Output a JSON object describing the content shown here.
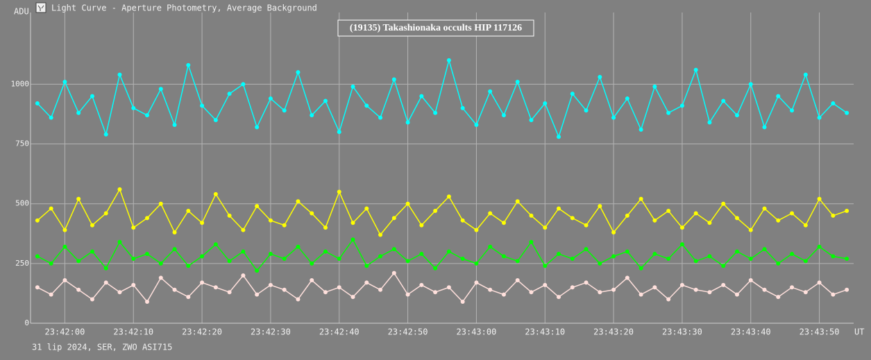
{
  "chart_data": {
    "type": "line",
    "window_title": "Light Curve - Aperture Photometry, Average Background",
    "title": "(19135) Takashionaka occults HIP 117126",
    "y_label": "ADU",
    "x_label": "UT",
    "footer": "31 lip 2024, SER, ZWO ASI715",
    "grid": true,
    "xlim": [
      "23:41:55",
      "23:43:55"
    ],
    "xticks": [
      "23:42:00",
      "23:42:10",
      "23:42:20",
      "23:42:30",
      "23:42:40",
      "23:42:50",
      "23:43:00",
      "23:43:10",
      "23:43:20",
      "23:43:30",
      "23:43:40",
      "23:43:50"
    ],
    "ylim": [
      0,
      1300
    ],
    "yticks": [
      0,
      250,
      500,
      750,
      1000
    ],
    "x": [
      "23:41:56",
      "23:41:58",
      "23:42:00",
      "23:42:02",
      "23:42:04",
      "23:42:06",
      "23:42:08",
      "23:42:10",
      "23:42:12",
      "23:42:14",
      "23:42:16",
      "23:42:18",
      "23:42:20",
      "23:42:22",
      "23:42:24",
      "23:42:26",
      "23:42:28",
      "23:42:30",
      "23:42:32",
      "23:42:34",
      "23:42:36",
      "23:42:38",
      "23:42:40",
      "23:42:42",
      "23:42:44",
      "23:42:46",
      "23:42:48",
      "23:42:50",
      "23:42:52",
      "23:42:54",
      "23:42:56",
      "23:42:58",
      "23:43:00",
      "23:43:02",
      "23:43:04",
      "23:43:06",
      "23:43:08",
      "23:43:10",
      "23:43:12",
      "23:43:14",
      "23:43:16",
      "23:43:18",
      "23:43:20",
      "23:43:22",
      "23:43:24",
      "23:43:26",
      "23:43:28",
      "23:43:30",
      "23:43:32",
      "23:43:34",
      "23:43:36",
      "23:43:38",
      "23:43:40",
      "23:43:42",
      "23:43:44",
      "23:43:46",
      "23:43:48",
      "23:43:50",
      "23:43:52",
      "23:43:54"
    ],
    "series": [
      {
        "color": "#00ffff",
        "values": [
          920,
          860,
          1010,
          880,
          950,
          790,
          1040,
          900,
          870,
          980,
          830,
          1080,
          910,
          850,
          960,
          1000,
          820,
          940,
          890,
          1050,
          870,
          930,
          800,
          990,
          910,
          860,
          1020,
          840,
          950,
          880,
          1100,
          900,
          830,
          970,
          870,
          1010,
          850,
          920,
          780,
          960,
          890,
          1030,
          860,
          940,
          810,
          990,
          880,
          910,
          1060,
          840,
          930,
          870,
          1000,
          820,
          950,
          890,
          1040,
          860,
          920,
          880
        ]
      },
      {
        "color": "#ffff00",
        "values": [
          430,
          480,
          390,
          520,
          410,
          460,
          560,
          400,
          440,
          500,
          380,
          470,
          420,
          540,
          450,
          390,
          490,
          430,
          410,
          510,
          460,
          400,
          550,
          420,
          480,
          370,
          440,
          500,
          410,
          470,
          530,
          430,
          390,
          460,
          420,
          510,
          450,
          400,
          480,
          440,
          410,
          490,
          380,
          450,
          520,
          430,
          470,
          400,
          460,
          420,
          500,
          440,
          390,
          480,
          430,
          460,
          410,
          520,
          450,
          470
        ]
      },
      {
        "color": "#00ff00",
        "values": [
          280,
          250,
          320,
          260,
          300,
          230,
          340,
          270,
          290,
          250,
          310,
          240,
          280,
          330,
          260,
          300,
          220,
          290,
          270,
          320,
          250,
          300,
          270,
          350,
          240,
          280,
          310,
          260,
          290,
          230,
          300,
          270,
          250,
          320,
          280,
          260,
          340,
          240,
          290,
          270,
          310,
          250,
          280,
          300,
          230,
          290,
          270,
          330,
          260,
          280,
          240,
          300,
          270,
          310,
          250,
          290,
          260,
          320,
          280,
          270
        ]
      },
      {
        "color": "#ffe0dc",
        "values": [
          150,
          120,
          180,
          140,
          100,
          170,
          130,
          160,
          90,
          190,
          140,
          110,
          170,
          150,
          130,
          200,
          120,
          160,
          140,
          100,
          180,
          130,
          150,
          110,
          170,
          140,
          210,
          120,
          160,
          130,
          150,
          90,
          170,
          140,
          120,
          180,
          130,
          160,
          110,
          150,
          170,
          130,
          140,
          190,
          120,
          150,
          100,
          160,
          140,
          130,
          160,
          120,
          180,
          140,
          110,
          150,
          130,
          170,
          120,
          140
        ]
      }
    ]
  }
}
